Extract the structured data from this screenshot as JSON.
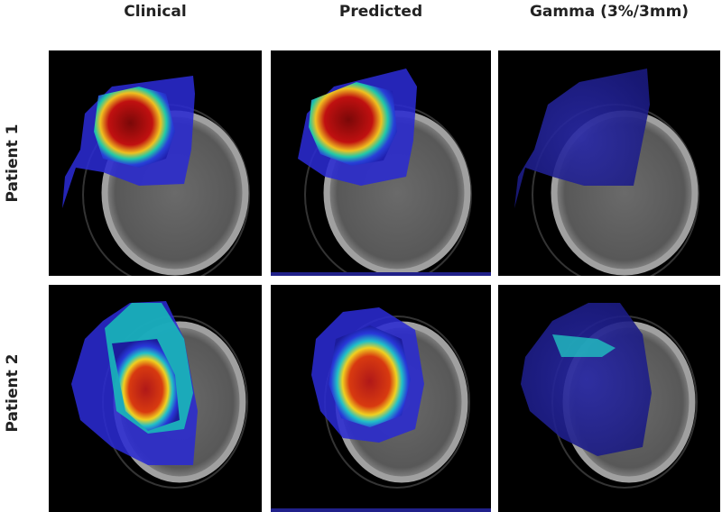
{
  "columns": [
    "Clinical",
    "Predicted",
    "Gamma (3%/3mm)"
  ],
  "rows": [
    "Patient 1",
    "Patient 2"
  ],
  "panels": [
    {
      "row": "Patient 1",
      "column": "Clinical",
      "overlay": "dose"
    },
    {
      "row": "Patient 1",
      "column": "Predicted",
      "overlay": "dose"
    },
    {
      "row": "Patient 1",
      "column": "Gamma (3%/3mm)",
      "overlay": "gamma"
    },
    {
      "row": "Patient 2",
      "column": "Clinical",
      "overlay": "dose"
    },
    {
      "row": "Patient 2",
      "column": "Predicted",
      "overlay": "dose"
    },
    {
      "row": "Patient 2",
      "column": "Gamma (3%/3mm)",
      "overlay": "gamma"
    }
  ],
  "colors": {
    "background": "#000000",
    "ct_bone": "#9a9a9a",
    "ct_soft": "#5e5e5e",
    "dose_low": "#2a2ad0",
    "dose_mid": "#18c8b0",
    "dose_high": "#f0e020",
    "dose_max": "#9a0a0a"
  }
}
